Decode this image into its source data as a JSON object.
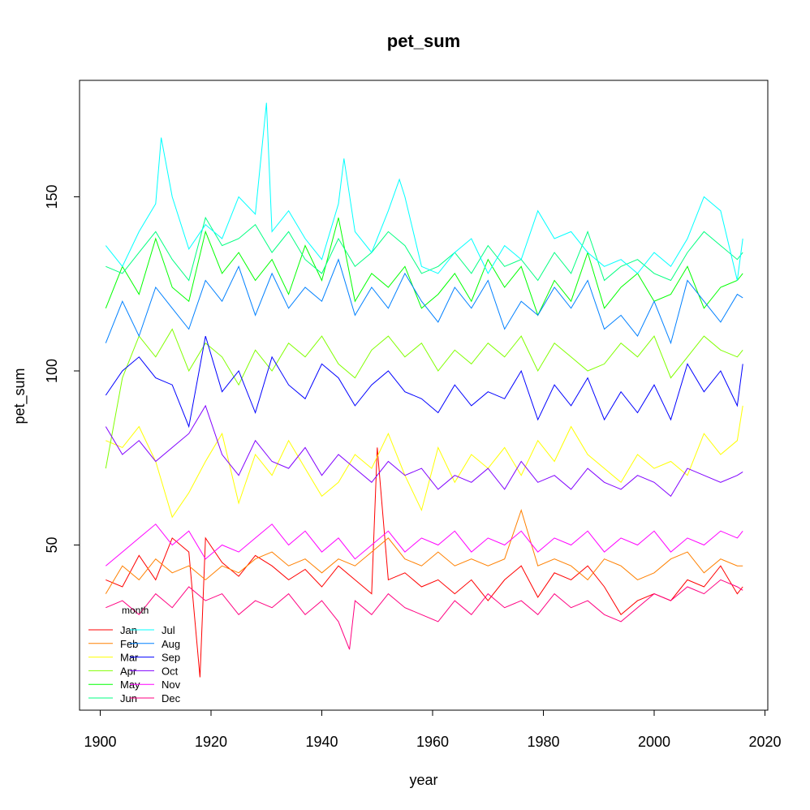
{
  "chart_data": {
    "type": "line",
    "title": "pet_sum",
    "xlabel": "year",
    "ylabel": "pet_sum",
    "xlim": [
      1901,
      2016
    ],
    "ylim": [
      10,
      180
    ],
    "xticks": [
      1900,
      1920,
      1940,
      1960,
      1980,
      2000,
      2020
    ],
    "yticks": [
      50,
      100,
      150
    ],
    "grid": false,
    "legend": {
      "title": "month",
      "placement": "bottom-left",
      "columns": 2
    },
    "series": [
      {
        "name": "Jan",
        "color": "#FF0000",
        "x": [
          1901,
          1904,
          1907,
          1910,
          1913,
          1916,
          1917,
          1918,
          1919,
          1922,
          1925,
          1928,
          1931,
          1934,
          1937,
          1940,
          1943,
          1946,
          1949,
          1950,
          1952,
          1955,
          1958,
          1961,
          1964,
          1967,
          1970,
          1973,
          1976,
          1979,
          1982,
          1985,
          1988,
          1991,
          1994,
          1997,
          2000,
          2003,
          2006,
          2009,
          2012,
          2015,
          2016
        ],
        "y": [
          40,
          38,
          47,
          40,
          52,
          48,
          30,
          12,
          52,
          45,
          41,
          47,
          44,
          40,
          43,
          38,
          44,
          40,
          36,
          78,
          40,
          42,
          38,
          40,
          36,
          40,
          34,
          40,
          44,
          35,
          42,
          40,
          44,
          38,
          30,
          34,
          36,
          34,
          40,
          38,
          44,
          36,
          38
        ]
      },
      {
        "name": "Feb",
        "color": "#FF8000",
        "x": [
          1901,
          1904,
          1907,
          1910,
          1913,
          1916,
          1919,
          1922,
          1925,
          1928,
          1931,
          1934,
          1937,
          1940,
          1943,
          1946,
          1949,
          1952,
          1955,
          1958,
          1961,
          1964,
          1967,
          1970,
          1973,
          1976,
          1979,
          1982,
          1985,
          1988,
          1991,
          1994,
          1997,
          2000,
          2003,
          2006,
          2009,
          2012,
          2015,
          2016
        ],
        "y": [
          36,
          44,
          40,
          46,
          42,
          44,
          40,
          44,
          42,
          46,
          48,
          44,
          46,
          42,
          46,
          44,
          48,
          52,
          46,
          44,
          48,
          44,
          46,
          44,
          46,
          60,
          44,
          46,
          44,
          40,
          46,
          44,
          40,
          42,
          46,
          48,
          42,
          46,
          44,
          44
        ]
      },
      {
        "name": "Mar",
        "color": "#FFFF00",
        "x": [
          1901,
          1904,
          1907,
          1910,
          1913,
          1916,
          1919,
          1922,
          1925,
          1928,
          1931,
          1934,
          1937,
          1940,
          1943,
          1946,
          1949,
          1952,
          1955,
          1958,
          1961,
          1964,
          1967,
          1970,
          1973,
          1976,
          1979,
          1982,
          1985,
          1988,
          1991,
          1994,
          1997,
          2000,
          2003,
          2006,
          2009,
          2012,
          2015,
          2016
        ],
        "y": [
          80,
          78,
          84,
          74,
          58,
          65,
          74,
          82,
          62,
          76,
          70,
          80,
          72,
          64,
          68,
          76,
          72,
          82,
          70,
          60,
          78,
          68,
          76,
          72,
          78,
          70,
          80,
          74,
          84,
          76,
          72,
          68,
          76,
          72,
          74,
          70,
          82,
          76,
          80,
          90
        ]
      },
      {
        "name": "Apr",
        "color": "#80FF00",
        "x": [
          1901,
          1904,
          1907,
          1910,
          1913,
          1916,
          1919,
          1922,
          1925,
          1928,
          1931,
          1934,
          1937,
          1940,
          1943,
          1946,
          1949,
          1952,
          1955,
          1958,
          1961,
          1964,
          1967,
          1970,
          1973,
          1976,
          1979,
          1982,
          1985,
          1988,
          1991,
          1994,
          1997,
          2000,
          2003,
          2006,
          2009,
          2012,
          2015,
          2016
        ],
        "y": [
          72,
          98,
          110,
          104,
          112,
          100,
          108,
          104,
          96,
          106,
          100,
          108,
          104,
          110,
          102,
          98,
          106,
          110,
          104,
          108,
          100,
          106,
          102,
          108,
          104,
          110,
          100,
          108,
          104,
          100,
          102,
          108,
          104,
          110,
          98,
          104,
          110,
          106,
          104,
          106
        ]
      },
      {
        "name": "May",
        "color": "#00FF00",
        "x": [
          1901,
          1904,
          1907,
          1910,
          1913,
          1916,
          1919,
          1922,
          1925,
          1928,
          1931,
          1934,
          1937,
          1940,
          1943,
          1946,
          1949,
          1952,
          1955,
          1958,
          1961,
          1964,
          1967,
          1970,
          1973,
          1976,
          1979,
          1982,
          1985,
          1988,
          1991,
          1994,
          1997,
          2000,
          2003,
          2006,
          2009,
          2012,
          2015,
          2016
        ],
        "y": [
          118,
          130,
          122,
          138,
          124,
          120,
          140,
          128,
          134,
          126,
          132,
          122,
          136,
          126,
          144,
          120,
          128,
          124,
          130,
          118,
          122,
          128,
          120,
          132,
          124,
          130,
          116,
          126,
          120,
          134,
          118,
          124,
          128,
          120,
          122,
          130,
          118,
          124,
          126,
          128
        ]
      },
      {
        "name": "Jun",
        "color": "#00FF80",
        "x": [
          1901,
          1904,
          1907,
          1910,
          1913,
          1916,
          1919,
          1922,
          1925,
          1928,
          1931,
          1934,
          1937,
          1940,
          1943,
          1946,
          1949,
          1952,
          1955,
          1958,
          1961,
          1964,
          1967,
          1970,
          1973,
          1976,
          1979,
          1982,
          1985,
          1988,
          1991,
          1994,
          1997,
          2000,
          2003,
          2006,
          2009,
          2012,
          2015,
          2016
        ],
        "y": [
          130,
          128,
          134,
          140,
          132,
          126,
          144,
          136,
          138,
          142,
          134,
          140,
          132,
          128,
          138,
          130,
          134,
          140,
          136,
          128,
          130,
          134,
          128,
          136,
          130,
          132,
          126,
          134,
          128,
          140,
          126,
          130,
          132,
          128,
          126,
          134,
          140,
          136,
          132,
          134
        ]
      },
      {
        "name": "Jul",
        "color": "#00FFFF",
        "x": [
          1901,
          1904,
          1907,
          1910,
          1911,
          1913,
          1916,
          1919,
          1922,
          1925,
          1928,
          1930,
          1931,
          1934,
          1937,
          1940,
          1943,
          1944,
          1946,
          1949,
          1952,
          1954,
          1955,
          1958,
          1961,
          1964,
          1967,
          1970,
          1973,
          1976,
          1979,
          1982,
          1985,
          1988,
          1991,
          1994,
          1997,
          2000,
          2003,
          2006,
          2009,
          2012,
          2015,
          2016
        ],
        "y": [
          136,
          130,
          140,
          148,
          167,
          150,
          135,
          142,
          138,
          150,
          145,
          177,
          140,
          146,
          138,
          132,
          148,
          161,
          140,
          134,
          146,
          155,
          150,
          130,
          128,
          134,
          138,
          128,
          136,
          132,
          146,
          138,
          140,
          134,
          130,
          132,
          128,
          134,
          130,
          138,
          150,
          146,
          126,
          138
        ]
      },
      {
        "name": "Aug",
        "color": "#0080FF",
        "x": [
          1901,
          1904,
          1907,
          1910,
          1913,
          1916,
          1919,
          1922,
          1925,
          1928,
          1931,
          1934,
          1937,
          1940,
          1943,
          1946,
          1949,
          1952,
          1955,
          1958,
          1961,
          1964,
          1967,
          1970,
          1973,
          1976,
          1979,
          1982,
          1985,
          1988,
          1991,
          1994,
          1997,
          2000,
          2003,
          2006,
          2009,
          2012,
          2015,
          2016
        ],
        "y": [
          108,
          120,
          110,
          124,
          118,
          112,
          126,
          120,
          130,
          116,
          128,
          118,
          124,
          120,
          132,
          116,
          124,
          118,
          128,
          120,
          114,
          124,
          118,
          126,
          112,
          120,
          116,
          124,
          118,
          126,
          112,
          116,
          110,
          120,
          108,
          126,
          120,
          114,
          122,
          121
        ]
      },
      {
        "name": "Sep",
        "color": "#0000FF",
        "x": [
          1901,
          1904,
          1907,
          1910,
          1913,
          1916,
          1919,
          1922,
          1925,
          1928,
          1931,
          1934,
          1937,
          1940,
          1943,
          1946,
          1949,
          1952,
          1955,
          1958,
          1961,
          1964,
          1967,
          1970,
          1973,
          1976,
          1979,
          1982,
          1985,
          1988,
          1991,
          1994,
          1997,
          2000,
          2003,
          2006,
          2009,
          2012,
          2015,
          2016
        ],
        "y": [
          93,
          100,
          104,
          98,
          96,
          84,
          110,
          94,
          100,
          88,
          104,
          96,
          92,
          102,
          98,
          90,
          96,
          100,
          94,
          92,
          88,
          96,
          90,
          94,
          92,
          100,
          86,
          96,
          90,
          98,
          86,
          94,
          88,
          96,
          86,
          102,
          94,
          100,
          90,
          102
        ]
      },
      {
        "name": "Oct",
        "color": "#8000FF",
        "x": [
          1901,
          1904,
          1907,
          1910,
          1913,
          1916,
          1919,
          1922,
          1925,
          1928,
          1931,
          1934,
          1937,
          1940,
          1943,
          1946,
          1949,
          1952,
          1955,
          1958,
          1961,
          1964,
          1967,
          1970,
          1973,
          1976,
          1979,
          1982,
          1985,
          1988,
          1991,
          1994,
          1997,
          2000,
          2003,
          2006,
          2009,
          2012,
          2015,
          2016
        ],
        "y": [
          84,
          76,
          80,
          74,
          78,
          82,
          90,
          76,
          70,
          80,
          74,
          72,
          78,
          70,
          76,
          72,
          68,
          74,
          70,
          72,
          66,
          70,
          68,
          72,
          66,
          74,
          68,
          70,
          66,
          72,
          68,
          66,
          70,
          68,
          64,
          72,
          70,
          68,
          70,
          71
        ]
      },
      {
        "name": "Nov",
        "color": "#FF00FF",
        "x": [
          1901,
          1904,
          1907,
          1910,
          1913,
          1916,
          1919,
          1922,
          1925,
          1928,
          1931,
          1934,
          1937,
          1940,
          1943,
          1946,
          1949,
          1952,
          1955,
          1958,
          1961,
          1964,
          1967,
          1970,
          1973,
          1976,
          1979,
          1982,
          1985,
          1988,
          1991,
          1994,
          1997,
          2000,
          2003,
          2006,
          2009,
          2012,
          2015,
          2016
        ],
        "y": [
          44,
          48,
          52,
          56,
          50,
          54,
          46,
          50,
          48,
          52,
          56,
          50,
          54,
          48,
          52,
          46,
          50,
          54,
          48,
          52,
          50,
          54,
          48,
          52,
          50,
          54,
          48,
          52,
          50,
          54,
          48,
          52,
          50,
          54,
          48,
          52,
          50,
          54,
          52,
          54
        ]
      },
      {
        "name": "Dec",
        "color": "#FF0080",
        "x": [
          1901,
          1904,
          1907,
          1910,
          1913,
          1916,
          1919,
          1922,
          1925,
          1928,
          1931,
          1934,
          1937,
          1940,
          1943,
          1945,
          1946,
          1949,
          1952,
          1955,
          1958,
          1961,
          1964,
          1967,
          1970,
          1973,
          1976,
          1979,
          1982,
          1985,
          1988,
          1991,
          1994,
          1997,
          2000,
          2003,
          2006,
          2009,
          2012,
          2015,
          2016
        ],
        "y": [
          32,
          34,
          30,
          36,
          32,
          38,
          34,
          36,
          30,
          34,
          32,
          36,
          30,
          34,
          28,
          20,
          34,
          30,
          36,
          32,
          30,
          28,
          34,
          30,
          36,
          32,
          34,
          30,
          36,
          32,
          34,
          30,
          28,
          32,
          36,
          34,
          38,
          36,
          40,
          38,
          37
        ]
      }
    ]
  }
}
